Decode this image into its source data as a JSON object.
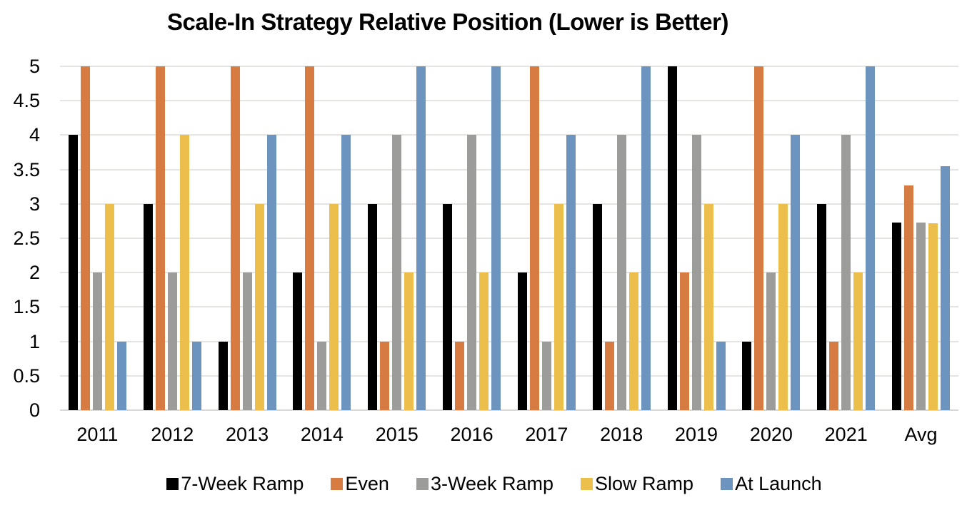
{
  "chart_data": {
    "type": "bar",
    "title": "Scale-In Strategy Relative Position (Lower is Better)",
    "xlabel": "",
    "ylabel": "",
    "categories": [
      "2011",
      "2012",
      "2013",
      "2014",
      "2015",
      "2016",
      "2017",
      "2018",
      "2019",
      "2020",
      "2021",
      "Avg"
    ],
    "series": [
      {
        "name": "7-Week Ramp",
        "color": "#000000",
        "values": [
          4,
          3,
          1,
          2,
          3,
          3,
          2,
          3,
          5,
          1,
          3,
          2.73
        ]
      },
      {
        "name": "Even",
        "color": "#D67C42",
        "values": [
          5,
          5,
          5,
          5,
          1,
          1,
          5,
          1,
          2,
          5,
          1,
          3.27
        ]
      },
      {
        "name": "3-Week Ramp",
        "color": "#9C9C9A",
        "values": [
          2,
          2,
          2,
          1,
          4,
          4,
          1,
          4,
          4,
          2,
          4,
          2.73
        ]
      },
      {
        "name": "Slow Ramp",
        "color": "#ECBE4C",
        "values": [
          3,
          4,
          3,
          3,
          2,
          2,
          3,
          2,
          3,
          3,
          2,
          2.72
        ]
      },
      {
        "name": "At Launch",
        "color": "#6C94BE",
        "values": [
          1,
          1,
          4,
          4,
          5,
          5,
          4,
          5,
          1,
          4,
          5,
          3.55
        ]
      }
    ],
    "ylim": [
      0,
      5
    ],
    "yticks": [
      "5",
      "4.5",
      "4",
      "3.5",
      "3",
      "2.5",
      "2",
      "1.5",
      "1",
      "0.5",
      "0"
    ],
    "grid": true,
    "legend_position": "bottom"
  },
  "colors": {
    "background": "#FFFFFF",
    "gridline": "#E4E4E2",
    "axis_line": "#D8D8D6",
    "text": "#000000"
  }
}
